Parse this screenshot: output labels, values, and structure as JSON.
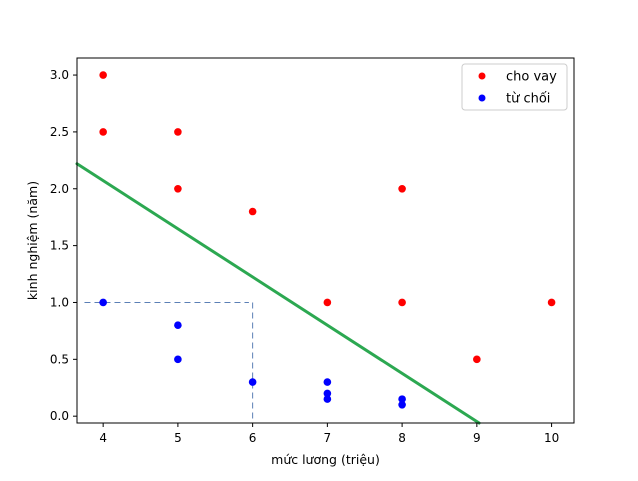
{
  "chart_data": {
    "type": "scatter",
    "title": "",
    "xlabel": "mức lương (triệu)",
    "ylabel": "kinh nghiệm (năm)",
    "xlim": [
      3.65,
      10.3
    ],
    "ylim": [
      -0.06,
      3.15
    ],
    "xticks": [
      4,
      5,
      6,
      7,
      8,
      9,
      10
    ],
    "yticks": [
      0.0,
      0.5,
      1.0,
      1.5,
      2.0,
      2.5,
      3.0
    ],
    "xtick_labels": [
      "4",
      "5",
      "6",
      "7",
      "8",
      "9",
      "10"
    ],
    "ytick_labels": [
      "0.0",
      "0.5",
      "1.0",
      "1.5",
      "2.0",
      "2.5",
      "3.0"
    ],
    "grid": false,
    "legend_position": "top-right",
    "series": [
      {
        "name": "cho vay",
        "color": "#ff0000",
        "points": [
          {
            "x": 4,
            "y": 3.0
          },
          {
            "x": 4,
            "y": 2.5
          },
          {
            "x": 5,
            "y": 2.5
          },
          {
            "x": 5,
            "y": 2.0
          },
          {
            "x": 6,
            "y": 1.8
          },
          {
            "x": 7,
            "y": 1.0
          },
          {
            "x": 8,
            "y": 2.0
          },
          {
            "x": 8,
            "y": 1.0
          },
          {
            "x": 9,
            "y": 0.5
          },
          {
            "x": 10,
            "y": 1.0
          }
        ]
      },
      {
        "name": "từ chối",
        "color": "#0000ff",
        "points": [
          {
            "x": 4,
            "y": 1.0
          },
          {
            "x": 5,
            "y": 0.8
          },
          {
            "x": 5,
            "y": 0.5
          },
          {
            "x": 6,
            "y": 0.3
          },
          {
            "x": 7,
            "y": 0.3
          },
          {
            "x": 7,
            "y": 0.2
          },
          {
            "x": 7,
            "y": 0.15
          },
          {
            "x": 8,
            "y": 0.15
          },
          {
            "x": 8,
            "y": 0.1
          }
        ]
      }
    ],
    "decision_line": {
      "color": "#2ca851",
      "from": {
        "x": 3.65,
        "y": 2.22
      },
      "to": {
        "x": 9.03,
        "y": -0.06
      }
    },
    "reference_lines": {
      "color": "#5b7fb5",
      "horizontal": {
        "y": 1.0,
        "x_from": 3.75,
        "x_to": 5.95
      },
      "vertical": {
        "x": 6.0,
        "y_from": -0.06,
        "y_to": 1.0
      }
    }
  }
}
